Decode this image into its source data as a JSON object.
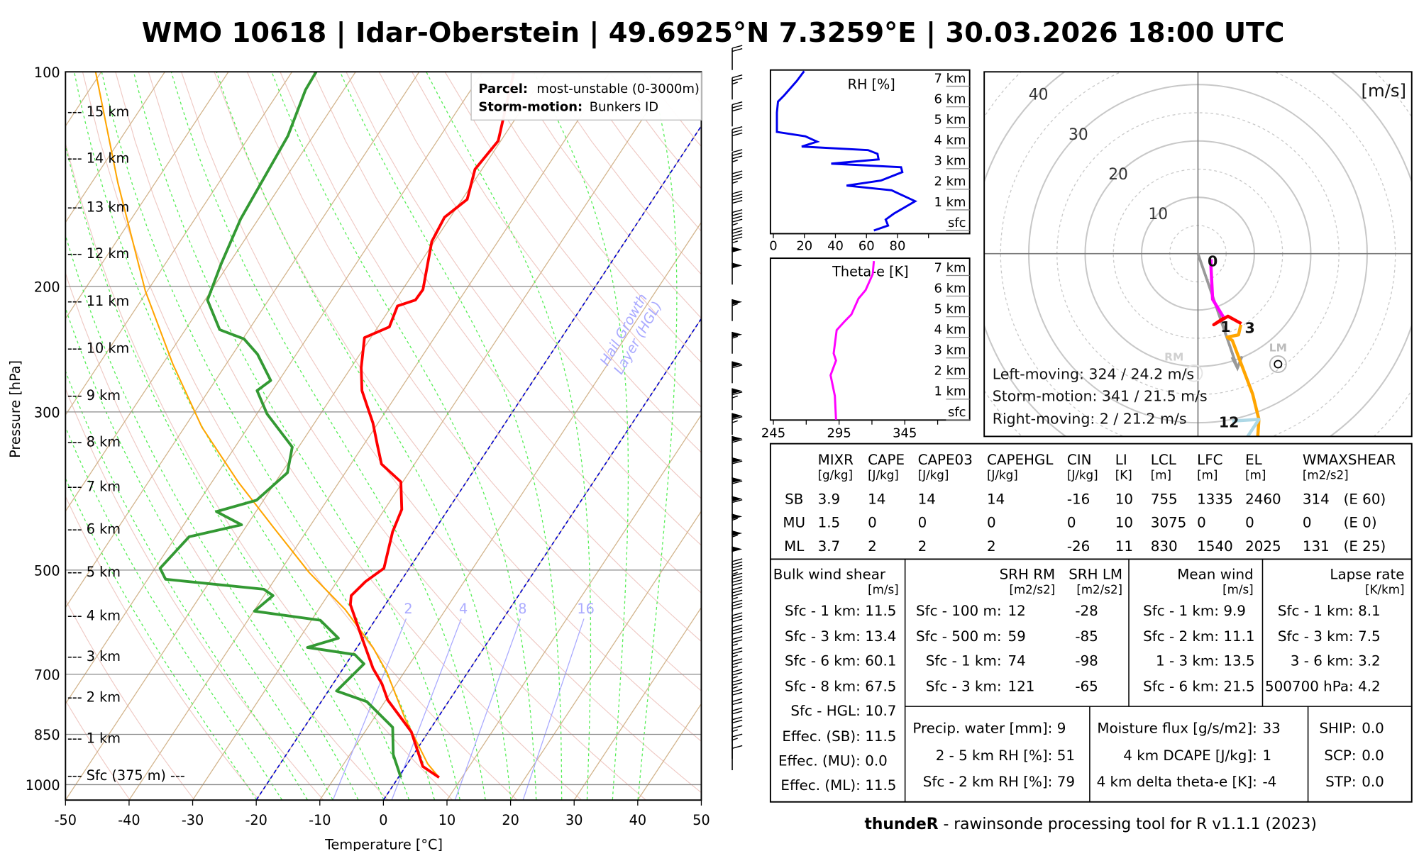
{
  "title": "WMO 10618 | Idar-Oberstein | 49.6925°N 7.3259°E | 30.03.2026 18:00 UTC",
  "footer": {
    "bold": "thundeR",
    "rest": " - rawinsonde processing tool for R v1.1.1 (2023)"
  },
  "colors": {
    "temperature": "#ff0000",
    "dewpoint": "#339933",
    "parcel": "#ffa500",
    "isotherm": "#d2b48c",
    "dry_adiabat": "#efc9c4",
    "moist_adiabat": "#55ee55",
    "mixing_ratio": "#aaaaff",
    "hgl": "#0000cc",
    "rh": "#0000ee",
    "theta_e": "#ff00ff"
  },
  "legend": {
    "parcel_label": "Parcel:",
    "parcel_value": "most-unstable (0-3000m)",
    "storm_label": "Storm-motion:",
    "storm_value": "Bunkers ID"
  },
  "chart_data": {
    "type": "skew-t",
    "xlabel": "Temperature [°C]",
    "ylabel": "Pressure [hPa]",
    "xlim": [
      -50,
      50
    ],
    "plim": [
      1050,
      100
    ],
    "x_ticks": [
      -50,
      -40,
      -30,
      -20,
      -10,
      0,
      10,
      20,
      30,
      40,
      50
    ],
    "p_ticks": [
      100,
      200,
      300,
      500,
      700,
      850,
      1000
    ],
    "height_labels": [
      "--- 15 km",
      "--- 14 km",
      "--- 13 km",
      "--- 12 km",
      "--- 11 km",
      "--- 10 km",
      "--- 9 km",
      "--- 8 km",
      "--- 7 km",
      "--- 6 km",
      "--- 5 km",
      "--- 4 km",
      "--- 3 km",
      "--- 2 km",
      "--- 1 km",
      "--- Sfc (375 m) ---"
    ],
    "hgl_label": [
      "Hail Growth",
      "Layer (HGL)"
    ],
    "hgl_isotherms": [
      0,
      -20
    ],
    "mixing_ratio_labels": [
      2,
      4,
      8,
      16
    ],
    "temperature": {
      "p": [
        977,
        943,
        843,
        761,
        722,
        687,
        620,
        559,
        543,
        519,
        497,
        442,
        411,
        376,
        355,
        334,
        311,
        293,
        280,
        260,
        236,
        228,
        213,
        209,
        202,
        173,
        160,
        151,
        137,
        125,
        100
      ],
      "t": [
        6.4,
        2.7,
        -2.7,
        -9.7,
        -12.3,
        -15.3,
        -20.4,
        -25.5,
        -26.3,
        -25.5,
        -24,
        -26.4,
        -27.3,
        -30.3,
        -35.2,
        -37.8,
        -40.8,
        -43.7,
        -45.9,
        -48.4,
        -51,
        -48.2,
        -49.1,
        -46.9,
        -46.8,
        -50.4,
        -50.9,
        -49.2,
        -51.1,
        -50.4,
        -55.1
      ]
    },
    "dewpoint": {
      "p": [
        977,
        907,
        831,
        765,
        739,
        677,
        657,
        642,
        623,
        588,
        571,
        543,
        532,
        515,
        497,
        449,
        432,
        414,
        399,
        365,
        336,
        302,
        280,
        271,
        249,
        237,
        230,
        209,
        186,
        161,
        123,
        106,
        100
      ],
      "t": [
        0.4,
        -3.2,
        -6.1,
        -12.8,
        -18.7,
        -17.2,
        -19.6,
        -27.8,
        -23.9,
        -28.6,
        -39.9,
        -38.6,
        -40.7,
        -57.2,
        -59.2,
        -57.9,
        -50.9,
        -56.2,
        -51.1,
        -49.1,
        -51,
        -58.4,
        -62.4,
        -61.3,
        -66.1,
        -69.8,
        -74.6,
        -79.6,
        -81.2,
        -82.8,
        -84,
        -86,
        -86.2
      ]
    },
    "parcel": {
      "p": [
        977,
        935,
        807,
        696,
        642,
        568,
        504,
        435,
        376,
        315,
        257,
        203,
        143,
        100
      ],
      "t": [
        6.4,
        3.2,
        -5.1,
        -12.7,
        -17.5,
        -25.8,
        -35.3,
        -45.7,
        -55.9,
        -67.3,
        -78.4,
        -90.3,
        -105.9,
        -120.9
      ]
    },
    "wind_barbs": {
      "p": [
        960,
        925,
        900,
        875,
        850,
        825,
        800,
        775,
        750,
        725,
        700,
        675,
        650,
        625,
        600,
        575,
        550,
        525,
        500,
        475,
        450,
        425,
        400,
        375,
        350,
        325,
        300,
        275,
        250,
        225,
        200,
        190,
        180,
        170,
        160,
        150,
        140,
        130,
        120,
        110,
        100
      ],
      "kt": [
        10,
        15,
        15,
        20,
        20,
        20,
        22,
        25,
        25,
        25,
        25,
        28,
        30,
        30,
        32,
        35,
        40,
        45,
        50,
        55,
        55,
        60,
        60,
        60,
        60,
        65,
        65,
        60,
        55,
        55,
        50,
        50,
        45,
        45,
        40,
        35,
        35,
        30,
        30,
        25,
        20
      ]
    }
  },
  "rh_panel": {
    "title": "RH [%]",
    "x_ticks": [
      0,
      20,
      40,
      60,
      80
    ],
    "height_labels": [
      "sfc",
      "1 km",
      "2 km",
      "3 km",
      "4 km",
      "5 km",
      "6 km",
      "7 km"
    ],
    "profile": {
      "h_km": [
        0,
        0.24,
        0.53,
        0.82,
        1.42,
        1.95,
        2.18,
        2.42,
        2.83,
        3.07,
        3.24,
        3.45,
        3.72,
        3.9,
        4.07,
        4.31,
        4.57,
        4.78,
        5.72,
        6.25,
        6.55,
        7.26,
        7.73
      ],
      "rh": [
        64.8,
        73.9,
        72.4,
        77.7,
        91.4,
        76.2,
        47.2,
        69.3,
        83.1,
        82.3,
        37.3,
        67.8,
        67.1,
        61,
        18.3,
        28.2,
        20.6,
        2.3,
        2.3,
        3,
        6.9,
        15.2,
        19.8
      ]
    }
  },
  "theta_e_panel": {
    "title": "Theta-e [K]",
    "x_ticks": [
      245,
      295,
      345
    ],
    "height_labels": [
      "sfc",
      "1 km",
      "2 km",
      "3 km",
      "4 km",
      "5 km",
      "6 km",
      "7 km"
    ],
    "profile": {
      "h_km": [
        0,
        1.16,
        2.16,
        2.87,
        3.22,
        4.35,
        4.76,
        5.11,
        5.88,
        6.29,
        7.06,
        7.7
      ],
      "theta_e": [
        292.7,
        291.8,
        288.5,
        292.7,
        290.9,
        293.2,
        299,
        304.4,
        309.8,
        315.2,
        320.6,
        321.5
      ]
    }
  },
  "hodograph": {
    "unit": "[m/s]",
    "rings": [
      10,
      20,
      30,
      40
    ],
    "segments": [
      {
        "color": "#ff00ff",
        "uv": [
          [
            2.3,
            -1.0
          ],
          [
            2.3,
            -2.3
          ],
          [
            2.6,
            -8.1
          ],
          [
            4.6,
            -11.4
          ]
        ]
      },
      {
        "color": "#ff0000",
        "uv": [
          [
            4.6,
            -11.4
          ],
          [
            2.8,
            -12.6
          ],
          [
            5.3,
            -11.1
          ],
          [
            7.7,
            -12.4
          ]
        ]
      },
      {
        "color": "#ffa500",
        "uv": [
          [
            7.6,
            -12.6
          ],
          [
            7.2,
            -14.4
          ],
          [
            5.2,
            -14.8
          ],
          [
            6.1,
            -15.4
          ],
          [
            9.7,
            -24.9
          ],
          [
            10.8,
            -29.4
          ],
          [
            10.5,
            -34
          ]
        ]
      },
      {
        "color": "#add8e6",
        "uv": [
          [
            6.1,
            -29.7
          ],
          [
            10.8,
            -29.4
          ],
          [
            8.7,
            -32.6
          ],
          [
            7.5,
            -34
          ]
        ]
      }
    ],
    "height_marks": [
      {
        "text": "0",
        "u": 2.6,
        "v": -1.3
      },
      {
        "text": "1",
        "u": 4.9,
        "v": -12.9
      },
      {
        "text": "3",
        "u": 9.2,
        "v": -13.1
      },
      {
        "text": "12",
        "u": 5.5,
        "v": -29.8
      }
    ],
    "storm_motion_vector": {
      "u": 7.0,
      "v": -20.3
    },
    "left_mover": {
      "label": "LM",
      "u": 14.2,
      "v": -19.6
    },
    "right_mover": {
      "label": "RM",
      "u": -0.7,
      "v": -21.2
    },
    "lines": [
      "Left-moving: 324 / 24.2 m/s",
      "Storm-motion: 341 / 21.5 m/s",
      "Right-moving: 2 / 21.2 m/s"
    ]
  },
  "table": {
    "thermo": {
      "columns": [
        {
          "name": "MIXR",
          "unit": "[g/kg]"
        },
        {
          "name": "CAPE",
          "unit": "[J/kg]"
        },
        {
          "name": "CAPE03",
          "unit": "[J/kg]"
        },
        {
          "name": "CAPEHGL",
          "unit": "[J/kg]"
        },
        {
          "name": "CIN",
          "unit": "[J/kg]"
        },
        {
          "name": "LI",
          "unit": "[K]"
        },
        {
          "name": "LCL",
          "unit": "[m]"
        },
        {
          "name": "LFC",
          "unit": "[m]"
        },
        {
          "name": "EL",
          "unit": "[m]"
        },
        {
          "name": "WMAXSHEAR",
          "unit": "[m2/s2]"
        }
      ],
      "rows": [
        {
          "label": "SB",
          "values": [
            "3.9",
            "14",
            "14",
            "14",
            "-16",
            "10",
            "755",
            "1335",
            "2460",
            "314",
            "(E 60)"
          ]
        },
        {
          "label": "MU",
          "values": [
            "1.5",
            "0",
            "0",
            "0",
            "0",
            "10",
            "3075",
            "0",
            "0",
            "0",
            "(E 0)"
          ]
        },
        {
          "label": "ML",
          "values": [
            "3.7",
            "2",
            "2",
            "2",
            "-26",
            "11",
            "830",
            "1540",
            "2025",
            "131",
            "(E 25)"
          ]
        }
      ]
    },
    "bulk_shear": {
      "title": "Bulk wind shear",
      "unit": "[m/s]",
      "rows": [
        [
          "Sfc - 1 km:",
          "11.5"
        ],
        [
          "Sfc - 3 km:",
          "13.4"
        ],
        [
          "Sfc - 6 km:",
          "60.1"
        ],
        [
          "Sfc - 8 km:",
          "67.5"
        ],
        [
          "Sfc - HGL:",
          "10.7"
        ],
        [
          "Effec. (SB):",
          "11.5"
        ],
        [
          "Effec. (MU):",
          "0.0"
        ],
        [
          "Effec. (ML):",
          "11.5"
        ]
      ]
    },
    "srh": {
      "title_rm": "SRH RM",
      "title_lm": "SRH LM",
      "unit_rm": "[m2/s2]",
      "unit_lm": "[m2/s2]",
      "rows": [
        [
          "Sfc - 100 m:",
          "12",
          "-28"
        ],
        [
          "Sfc - 500 m:",
          "59",
          "-85"
        ],
        [
          "Sfc - 1 km:",
          "74",
          "-98"
        ],
        [
          "Sfc - 3 km:",
          "121",
          "-65"
        ]
      ]
    },
    "mean_wind": {
      "title": "Mean wind",
      "unit": "[m/s]",
      "rows": [
        [
          "Sfc - 1 km:",
          "9.9"
        ],
        [
          "Sfc - 2 km:",
          "11.1"
        ],
        [
          "1 - 3 km:",
          "13.5"
        ],
        [
          "Sfc - 6 km:",
          "21.5"
        ]
      ]
    },
    "lapse_rate": {
      "title": "Lapse rate",
      "unit": "[K/km]",
      "rows": [
        [
          "Sfc - 1 km:",
          "8.1"
        ],
        [
          "Sfc - 3 km:",
          "7.5"
        ],
        [
          "3 - 6 km:",
          "3.2"
        ],
        [
          "500700 hPa:",
          "4.2"
        ]
      ]
    },
    "moisture": {
      "rows": [
        [
          "Precip. water [mm]:",
          "9"
        ],
        [
          "2 - 5 km RH [%]:",
          "51"
        ],
        [
          "Sfc - 2 km RH [%]:",
          "79"
        ]
      ]
    },
    "dcape": {
      "rows": [
        [
          "Moisture flux [g/s/m2]:",
          "33"
        ],
        [
          "4 km DCAPE [J/kg]:",
          "1"
        ],
        [
          "4 km delta theta-e [K]:",
          "-4"
        ]
      ]
    },
    "composite": {
      "rows": [
        [
          "SHIP:",
          "0.0"
        ],
        [
          "SCP:",
          "0.0"
        ],
        [
          "STP:",
          "0.0"
        ]
      ]
    }
  }
}
